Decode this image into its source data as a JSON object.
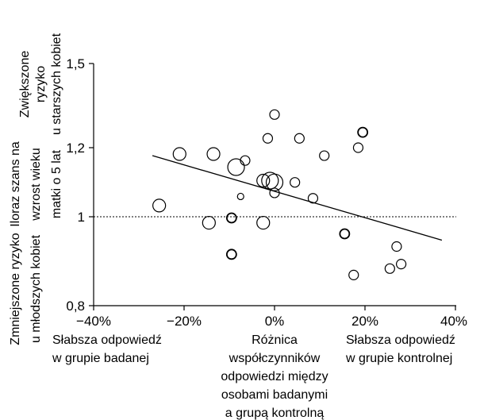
{
  "chart_data": {
    "type": "scatter",
    "y_scale": "log",
    "xlim": [
      -0.4,
      0.4
    ],
    "ylim": [
      0.8,
      1.5
    ],
    "x_ticks": [
      -0.4,
      -0.2,
      0,
      0.2,
      0.4
    ],
    "x_tick_labels": [
      "−40%",
      "−20%",
      "0%",
      "20%",
      "40%"
    ],
    "y_ticks": [
      0.8,
      1,
      1.2,
      1.5
    ],
    "y_tick_labels": [
      "0,8",
      "1",
      "1,2",
      "1,5"
    ],
    "reference_line_y": 1,
    "regression_line": {
      "x": [
        -0.27,
        0.37
      ],
      "y": [
        1.175,
        0.943
      ]
    },
    "x_left_label": [
      "Słabsza odpowiedź",
      "w grupie badanej"
    ],
    "x_right_label": [
      "Słabsza odpowiedź",
      "w grupie kontrolnej"
    ],
    "x_center_label": [
      "Różnica",
      "współczynników",
      "odpowiedzi między",
      "osobami badanymi",
      "a grupą kontrolną"
    ],
    "y_label": [
      "Iloraz szans na",
      "wzrost wieku",
      "matki o 5 lat"
    ],
    "y_top_label": [
      "Zwiększone",
      "ryzyko",
      "u starszych kobiet"
    ],
    "y_bottom_label": [
      "Zmniejszone ryzyko",
      "u młodszych kobiet"
    ],
    "points": [
      {
        "x": 0.0,
        "y": 1.31,
        "size": "small"
      },
      {
        "x": 0.055,
        "y": 1.23,
        "size": "small"
      },
      {
        "x": 0.195,
        "y": 1.25,
        "size": "small"
      },
      {
        "x": -0.015,
        "y": 1.23,
        "size": "small"
      },
      {
        "x": 0.185,
        "y": 1.2,
        "size": "small"
      },
      {
        "x": -0.21,
        "y": 1.18,
        "size": "medium"
      },
      {
        "x": -0.135,
        "y": 1.18,
        "size": "medium"
      },
      {
        "x": 0.11,
        "y": 1.175,
        "size": "small"
      },
      {
        "x": -0.065,
        "y": 1.16,
        "size": "small"
      },
      {
        "x": -0.085,
        "y": 1.14,
        "size": "large"
      },
      {
        "x": -0.025,
        "y": 1.1,
        "size": "medium"
      },
      {
        "x": -0.01,
        "y": 1.1,
        "size": "large"
      },
      {
        "x": 0.0,
        "y": 1.095,
        "size": "large"
      },
      {
        "x": 0.045,
        "y": 1.095,
        "size": "small"
      },
      {
        "x": -0.075,
        "y": 1.055,
        "size": "tiny"
      },
      {
        "x": 0.0,
        "y": 1.065,
        "size": "small"
      },
      {
        "x": 0.085,
        "y": 1.05,
        "size": "small"
      },
      {
        "x": -0.255,
        "y": 1.03,
        "size": "medium"
      },
      {
        "x": -0.095,
        "y": 0.997,
        "size": "small"
      },
      {
        "x": -0.145,
        "y": 0.985,
        "size": "medium"
      },
      {
        "x": -0.025,
        "y": 0.985,
        "size": "medium"
      },
      {
        "x": 0.155,
        "y": 0.958,
        "size": "small"
      },
      {
        "x": 0.27,
        "y": 0.928,
        "size": "small"
      },
      {
        "x": -0.095,
        "y": 0.91,
        "size": "small"
      },
      {
        "x": 0.28,
        "y": 0.888,
        "size": "small"
      },
      {
        "x": 0.255,
        "y": 0.878,
        "size": "small"
      },
      {
        "x": 0.175,
        "y": 0.864,
        "size": "small"
      }
    ]
  }
}
